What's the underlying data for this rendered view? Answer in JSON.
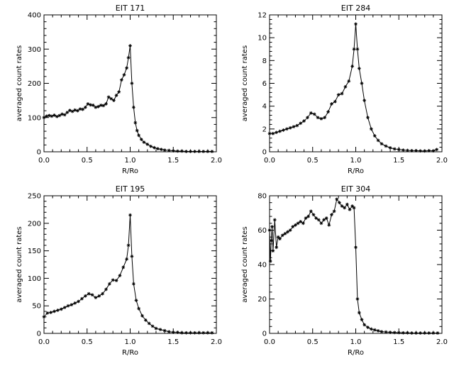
{
  "chart_data": [
    {
      "type": "line",
      "title": "EIT 171",
      "xlabel": "R/Ro",
      "ylabel": "averaged count rates",
      "xlim": [
        0.0,
        2.0
      ],
      "ylim": [
        0,
        400
      ],
      "xticks": [
        0.0,
        0.5,
        1.0,
        1.5,
        2.0
      ],
      "xtick_labels": [
        "0.0",
        "0.5",
        "1.0",
        "1.5",
        "2.0"
      ],
      "yticks": [
        0,
        100,
        200,
        300,
        400
      ],
      "ytick_labels": [
        "0",
        "100",
        "200",
        "300",
        "400"
      ],
      "grid": false,
      "marker": "asterisk",
      "series": [
        {
          "x": [
            0.0,
            0.03,
            0.06,
            0.09,
            0.12,
            0.15,
            0.18,
            0.21,
            0.24,
            0.27,
            0.3,
            0.33,
            0.36,
            0.39,
            0.42,
            0.45,
            0.48,
            0.51,
            0.54,
            0.57,
            0.6,
            0.63,
            0.66,
            0.69,
            0.72,
            0.75,
            0.78,
            0.81,
            0.84,
            0.87,
            0.9,
            0.93,
            0.96,
            0.98,
            1.0,
            1.02,
            1.04,
            1.06,
            1.08,
            1.1,
            1.13,
            1.16,
            1.2,
            1.24,
            1.28,
            1.32,
            1.36,
            1.4,
            1.45,
            1.5,
            1.55,
            1.6,
            1.65,
            1.7,
            1.75,
            1.8,
            1.85,
            1.9,
            1.95
          ],
          "y": [
            100,
            104,
            106,
            104,
            107,
            103,
            106,
            110,
            108,
            115,
            121,
            118,
            122,
            120,
            125,
            124,
            130,
            140,
            137,
            136,
            130,
            132,
            136,
            135,
            140,
            160,
            155,
            150,
            165,
            175,
            210,
            225,
            245,
            275,
            310,
            200,
            130,
            85,
            62,
            48,
            36,
            28,
            22,
            16,
            12,
            9,
            7,
            5,
            4,
            3,
            2,
            2,
            1,
            1,
            1,
            1,
            1,
            1,
            1
          ]
        }
      ]
    },
    {
      "type": "line",
      "title": "EIT 284",
      "xlabel": "R/Ro",
      "ylabel": "averaged count rates",
      "xlim": [
        0.0,
        2.0
      ],
      "ylim": [
        0,
        12
      ],
      "xticks": [
        0.0,
        0.5,
        1.0,
        1.5,
        2.0
      ],
      "xtick_labels": [
        "0.0",
        "0.5",
        "1.0",
        "1.5",
        "2.0"
      ],
      "yticks": [
        0,
        2,
        4,
        6,
        8,
        10,
        12
      ],
      "ytick_labels": [
        "0",
        "2",
        "4",
        "6",
        "8",
        "10",
        "12"
      ],
      "grid": false,
      "marker": "asterisk",
      "series": [
        {
          "x": [
            0.0,
            0.04,
            0.08,
            0.12,
            0.16,
            0.2,
            0.24,
            0.28,
            0.32,
            0.36,
            0.4,
            0.44,
            0.48,
            0.52,
            0.56,
            0.6,
            0.64,
            0.68,
            0.72,
            0.76,
            0.8,
            0.84,
            0.88,
            0.92,
            0.96,
            0.98,
            1.0,
            1.02,
            1.04,
            1.07,
            1.1,
            1.14,
            1.18,
            1.22,
            1.26,
            1.3,
            1.35,
            1.4,
            1.45,
            1.5,
            1.55,
            1.6,
            1.65,
            1.7,
            1.75,
            1.8,
            1.85,
            1.9,
            1.94
          ],
          "y": [
            1.6,
            1.6,
            1.7,
            1.8,
            1.9,
            2.0,
            2.1,
            2.2,
            2.3,
            2.5,
            2.7,
            3.0,
            3.4,
            3.3,
            3.0,
            2.9,
            3.0,
            3.5,
            4.2,
            4.4,
            5.0,
            5.1,
            5.7,
            6.2,
            7.5,
            9.0,
            11.2,
            9.0,
            7.3,
            6.0,
            4.5,
            3.0,
            2.0,
            1.4,
            1.0,
            0.7,
            0.5,
            0.35,
            0.25,
            0.2,
            0.15,
            0.12,
            0.1,
            0.1,
            0.08,
            0.07,
            0.1,
            0.08,
            0.2
          ]
        }
      ]
    },
    {
      "type": "line",
      "title": "EIT 195",
      "xlabel": "R/Ro",
      "ylabel": "averaged count rates",
      "xlim": [
        0.0,
        2.0
      ],
      "ylim": [
        0,
        250
      ],
      "xticks": [
        0.0,
        0.5,
        1.0,
        1.5,
        2.0
      ],
      "xtick_labels": [
        "0.0",
        "0.5",
        "1.0",
        "1.5",
        "2.0"
      ],
      "yticks": [
        0,
        50,
        100,
        150,
        200,
        250
      ],
      "ytick_labels": [
        "0",
        "50",
        "100",
        "150",
        "200",
        "250"
      ],
      "grid": false,
      "marker": "asterisk",
      "series": [
        {
          "x": [
            0.0,
            0.04,
            0.08,
            0.12,
            0.16,
            0.2,
            0.24,
            0.28,
            0.32,
            0.36,
            0.4,
            0.44,
            0.48,
            0.52,
            0.56,
            0.6,
            0.64,
            0.68,
            0.72,
            0.76,
            0.8,
            0.84,
            0.88,
            0.92,
            0.96,
            0.98,
            1.0,
            1.02,
            1.04,
            1.07,
            1.1,
            1.14,
            1.18,
            1.22,
            1.26,
            1.3,
            1.35,
            1.4,
            1.45,
            1.5,
            1.55,
            1.6,
            1.65,
            1.7,
            1.75,
            1.8,
            1.85,
            1.9,
            1.95
          ],
          "y": [
            30,
            37,
            38,
            40,
            42,
            44,
            47,
            50,
            52,
            55,
            58,
            63,
            68,
            72,
            70,
            65,
            68,
            72,
            80,
            90,
            97,
            96,
            105,
            120,
            135,
            160,
            215,
            140,
            90,
            60,
            45,
            32,
            24,
            18,
            13,
            9,
            7,
            5,
            3,
            2,
            2,
            1,
            1,
            1,
            1,
            1,
            1,
            1,
            1
          ]
        }
      ]
    },
    {
      "type": "line",
      "title": "EIT 304",
      "xlabel": "R/Ro",
      "ylabel": "averaged count rates",
      "xlim": [
        0.0,
        2.0
      ],
      "ylim": [
        0,
        80
      ],
      "xticks": [
        0.0,
        0.5,
        1.0,
        1.5,
        2.0
      ],
      "xtick_labels": [
        "0.0",
        "0.5",
        "1.0",
        "1.5",
        "2.0"
      ],
      "yticks": [
        0,
        20,
        40,
        60,
        80
      ],
      "ytick_labels": [
        "0",
        "20",
        "40",
        "60",
        "80"
      ],
      "grid": false,
      "marker": "asterisk",
      "series": [
        {
          "x": [
            0.0,
            0.01,
            0.02,
            0.03,
            0.04,
            0.06,
            0.08,
            0.1,
            0.12,
            0.15,
            0.18,
            0.21,
            0.24,
            0.27,
            0.3,
            0.33,
            0.36,
            0.39,
            0.42,
            0.45,
            0.48,
            0.51,
            0.54,
            0.57,
            0.6,
            0.63,
            0.66,
            0.69,
            0.72,
            0.75,
            0.78,
            0.81,
            0.84,
            0.87,
            0.9,
            0.93,
            0.96,
            0.98,
            1.0,
            1.02,
            1.04,
            1.07,
            1.1,
            1.14,
            1.18,
            1.22,
            1.26,
            1.3,
            1.35,
            1.4,
            1.45,
            1.5,
            1.55,
            1.6,
            1.65,
            1.7,
            1.75,
            1.8,
            1.85,
            1.9,
            1.95
          ],
          "y": [
            60,
            42,
            54,
            62,
            48,
            66,
            50,
            56,
            55,
            57,
            58,
            59,
            60,
            62,
            63,
            64,
            65,
            64,
            67,
            68,
            71,
            69,
            67,
            66,
            64,
            66,
            67,
            63,
            69,
            71,
            78,
            76,
            74,
            73,
            75,
            72,
            74,
            73,
            50,
            20,
            12,
            8,
            5,
            3.5,
            2.5,
            2,
            1.5,
            1,
            0.8,
            0.6,
            0.5,
            0.4,
            0.3,
            0.3,
            0.2,
            0.2,
            0.2,
            0.2,
            0.2,
            0.2,
            0.2
          ]
        }
      ]
    }
  ]
}
